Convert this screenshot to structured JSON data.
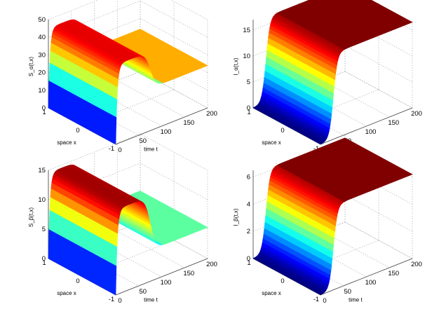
{
  "chart_data": [
    {
      "type": "surface",
      "zlabel": "S_α(t,x)",
      "xlabel": "space x",
      "ylabel": "time t",
      "z_ticks": [
        "0",
        "10",
        "20",
        "30",
        "40",
        "50"
      ],
      "x_ticks": [
        "1",
        "0",
        "-1"
      ],
      "t_ticks": [
        "0",
        "50",
        "100",
        "150",
        "200"
      ],
      "x_range": [
        -1,
        1
      ],
      "t_range": [
        0,
        200
      ],
      "z_range": [
        0,
        50
      ],
      "profile": "hump",
      "peak_value": 45,
      "plateau_value": 24,
      "transition_time": 75,
      "colormap": "jet",
      "plateau_color": "#ffae00",
      "grid": true
    },
    {
      "type": "surface",
      "zlabel": "I_α(t,x)",
      "xlabel": "space x",
      "ylabel": "time t",
      "z_ticks": [
        "0",
        "5",
        "10",
        "15"
      ],
      "x_ticks": [
        "1",
        "0",
        "-1"
      ],
      "t_ticks": [
        "0",
        "50",
        "100",
        "150",
        "200"
      ],
      "x_range": [
        -1,
        1
      ],
      "t_range": [
        0,
        200
      ],
      "z_range": [
        0,
        17
      ],
      "profile": "rise",
      "initial_value": 0,
      "final_value": 16.5,
      "transition_time": 28,
      "colormap": "jet",
      "plateau_color": "#800000",
      "grid": true
    },
    {
      "type": "surface",
      "zlabel": "S_β(t,x)",
      "xlabel": "space x",
      "ylabel": "time t",
      "z_ticks": [
        "0",
        "5",
        "10",
        "15"
      ],
      "x_ticks": [
        "1",
        "0",
        "-1"
      ],
      "t_ticks": [
        "0",
        "50",
        "100",
        "150",
        "200"
      ],
      "x_range": [
        -1,
        1
      ],
      "t_range": [
        0,
        200
      ],
      "z_range": [
        0,
        15
      ],
      "profile": "hump",
      "peak_value": 14.5,
      "plateau_value": 5.3,
      "transition_time": 75,
      "colormap": "jet",
      "plateau_color": "#5cffa0",
      "grid": true
    },
    {
      "type": "surface",
      "zlabel": "I_β(t,x)",
      "xlabel": "space x",
      "ylabel": "time t",
      "z_ticks": [
        "0",
        "2",
        "4",
        "6"
      ],
      "x_ticks": [
        "1",
        "0",
        "-1"
      ],
      "t_ticks": [
        "0",
        "50",
        "100",
        "150",
        "200"
      ],
      "x_range": [
        -1,
        1
      ],
      "t_range": [
        0,
        200
      ],
      "z_range": [
        0,
        6.5
      ],
      "profile": "rise",
      "initial_value": 0,
      "final_value": 6.2,
      "transition_time": 28,
      "colormap": "jet",
      "plateau_color": "#800000",
      "grid": true
    }
  ]
}
